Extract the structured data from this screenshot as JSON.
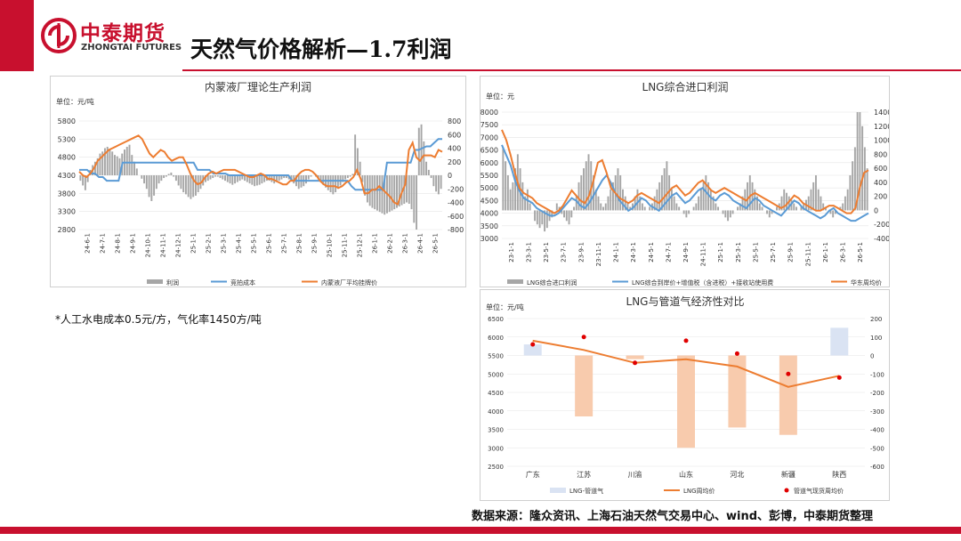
{
  "brand": {
    "cn": "中泰期货",
    "en": "ZHONGTAI FUTURES"
  },
  "page_title": "天然气价格解析—1.7利润",
  "note": "*人工水电成本0.5元/方，气化率1450方/吨",
  "source": "数据来源：隆众资讯、上海石油天然气交易中心、wind、彭博，中泰期货整理",
  "colors": {
    "brand_red": "#c8102e",
    "grey_bar": "#a6a6a6",
    "blue": "#5b9bd5",
    "orange": "#ed7d31",
    "pink_bar": "#f8cbad",
    "light_blue_bar": "#dae3f3",
    "dot_red": "#e00000"
  },
  "chart_data": [
    {
      "type": "line",
      "title": "内蒙液厂理论生产利润",
      "unit": "单位：元/吨",
      "left_axis": {
        "ticks": [
          "5800",
          "5300",
          "4800",
          "4300",
          "3800",
          "3300",
          "2800"
        ],
        "range": [
          2800,
          5800
        ]
      },
      "right_axis": {
        "ticks": [
          "800",
          "600",
          "400",
          "200",
          "0",
          "-200",
          "-400",
          "-600",
          "-800"
        ],
        "range": [
          -800,
          800
        ]
      },
      "x_ticks": [
        "24-6-1",
        "24-7-1",
        "24-8-1",
        "24-9-1",
        "24-10-1",
        "24-11-1",
        "24-12-1",
        "25-1-1",
        "25-2-1",
        "25-3-1",
        "25-4-1",
        "25-5-1",
        "25-6-1",
        "25-7-1",
        "25-8-1",
        "25-9-1",
        "25-10-1",
        "25-11-1",
        "25-12-1",
        "26-1-1",
        "26-2-1",
        "26-3-1",
        "26-4-1",
        "26-5-1"
      ],
      "legend": [
        "利润",
        "竞拍成本",
        "内蒙液厂平均挂牌价"
      ],
      "series": [
        {
          "name": "利润",
          "axis": "right",
          "kind": "bar",
          "values": [
            -80,
            -150,
            -220,
            -100,
            80,
            150,
            200,
            250,
            320,
            350,
            400,
            420,
            380,
            350,
            300,
            280,
            250,
            320,
            380,
            420,
            450,
            300,
            200,
            100,
            0,
            -50,
            -120,
            -200,
            -320,
            -380,
            -300,
            -200,
            -120,
            -80,
            -40,
            -20,
            20,
            40,
            -20,
            -80,
            -150,
            -200,
            -250,
            -280,
            -320,
            -350,
            -320,
            -300,
            -250,
            -200,
            -150,
            -100,
            -80,
            -60,
            -40,
            -20,
            -20,
            -40,
            -60,
            -80,
            -100,
            -120,
            -140,
            -120,
            -100,
            -80,
            -60,
            -80,
            -100,
            -120,
            -140,
            -160,
            -150,
            -140,
            -120,
            -100,
            -80,
            -80,
            -100,
            -120,
            -100,
            -80,
            -60,
            -40,
            -40,
            -60,
            -80,
            -120,
            -160,
            -200,
            -180,
            -160,
            -120,
            -60,
            -20,
            0,
            -20,
            -60,
            -100,
            -140,
            -180,
            -220,
            -250,
            -280,
            -250,
            -200,
            -150,
            -100,
            -60,
            -40,
            -20,
            20,
            600,
            400,
            200,
            -100,
            -300,
            -400,
            -450,
            -480,
            -500,
            -520,
            -540,
            -560,
            -580,
            -560,
            -540,
            -520,
            -500,
            -480,
            -460,
            -440,
            -420,
            -400,
            -420,
            -500,
            -700,
            -800,
            700,
            750,
            500,
            200,
            80,
            -40,
            -160,
            -240,
            -280,
            -200
          ]
        },
        {
          "name": "竞拍成本",
          "axis": "left",
          "kind": "line",
          "values": [
            4450,
            4450,
            4450,
            4350,
            4350,
            4250,
            4250,
            4150,
            4150,
            4150,
            4150,
            4650,
            4650,
            4650,
            4650,
            4650,
            4650,
            4650,
            4650,
            4650,
            4650,
            4650,
            4650,
            4650,
            4650,
            4650,
            4650,
            4650,
            4650,
            4650,
            4450,
            4450,
            4450,
            4450,
            4350,
            4350,
            4350,
            4350,
            4300,
            4300,
            4300,
            4300,
            4300,
            4300,
            4300,
            4300,
            4300,
            4300,
            4300,
            4300,
            4300,
            4300,
            4300,
            4300,
            4150,
            4150,
            4150,
            4150,
            4150,
            4150,
            4150,
            4150,
            4150,
            4150,
            4150,
            4150,
            4150,
            4150,
            4150,
            4000,
            3900,
            3900,
            3900,
            3900,
            3900,
            3900,
            3900,
            3900,
            4650,
            4650,
            4650,
            4650,
            4650,
            4650,
            4650,
            5000,
            5000,
            5050,
            5100,
            5100,
            5200,
            5300,
            5300
          ]
        },
        {
          "name": "内蒙液厂平均挂牌价",
          "axis": "left",
          "kind": "line",
          "values": [
            4400,
            4300,
            4250,
            4350,
            4500,
            4700,
            4800,
            4900,
            5000,
            5050,
            5100,
            5150,
            5200,
            5250,
            5300,
            5350,
            5400,
            5300,
            5100,
            4900,
            4800,
            4900,
            5000,
            4950,
            4800,
            4700,
            4750,
            4800,
            4800,
            4600,
            4350,
            4150,
            4050,
            4100,
            4250,
            4350,
            4400,
            4350,
            4400,
            4450,
            4450,
            4450,
            4450,
            4400,
            4350,
            4300,
            4250,
            4250,
            4300,
            4350,
            4300,
            4200,
            4200,
            4150,
            4100,
            4050,
            4050,
            4150,
            4150,
            4300,
            4400,
            4450,
            4450,
            4400,
            4300,
            4150,
            4050,
            4000,
            4000,
            4000,
            3950,
            4000,
            4100,
            4150,
            4250,
            4450,
            4200,
            3800,
            3800,
            3900,
            3900,
            4000,
            3900,
            3800,
            3700,
            3550,
            3500,
            3800,
            4050,
            5000,
            5200,
            4800,
            4700,
            4850,
            4850,
            4850,
            4800,
            5000,
            4950
          ]
        }
      ]
    },
    {
      "type": "line",
      "title": "LNG综合进口利润",
      "unit": "单位：元",
      "left_axis": {
        "ticks": [
          "8000",
          "7500",
          "7000",
          "6500",
          "6000",
          "5500",
          "5000",
          "4500",
          "4000",
          "3500",
          "3000"
        ],
        "range": [
          3000,
          8000
        ]
      },
      "right_axis": {
        "ticks": [
          "1400",
          "1200",
          "1000",
          "800",
          "600",
          "400",
          "200",
          "0",
          "-200",
          "-400"
        ],
        "range": [
          -400,
          1400
        ]
      },
      "x_ticks": [
        "23-1-1",
        "23-3-1",
        "23-5-1",
        "23-7-1",
        "23-9-1",
        "23-11-1",
        "24-1-1",
        "24-3-1",
        "24-5-1",
        "24-7-1",
        "24-9-1",
        "24-11-1",
        "25-1-1",
        "25-3-1",
        "25-5-1",
        "25-7-1",
        "25-9-1",
        "25-11-1",
        "26-1-1",
        "26-3-1",
        "26-5-1"
      ],
      "legend": [
        "LNG综合进口利润",
        "LNG综合到岸价+增值税（含进税）+接收站使用费",
        "华东周均价"
      ],
      "series": [
        {
          "name": "LNG综合进口利润",
          "axis": "right",
          "kind": "bar",
          "values": [
            900,
            700,
            500,
            300,
            400,
            600,
            800,
            600,
            400,
            200,
            300,
            100,
            0,
            -150,
            -200,
            -250,
            -200,
            -300,
            -250,
            -150,
            -100,
            0,
            100,
            50,
            -50,
            -100,
            -150,
            -200,
            -100,
            50,
            200,
            400,
            500,
            600,
            700,
            800,
            700,
            500,
            300,
            200,
            100,
            50,
            100,
            200,
            300,
            400,
            500,
            600,
            500,
            300,
            200,
            100,
            50,
            100,
            200,
            300,
            200,
            100,
            50,
            0,
            50,
            100,
            200,
            300,
            400,
            500,
            600,
            700,
            500,
            300,
            200,
            100,
            50,
            0,
            -50,
            -100,
            -50,
            0,
            50,
            100,
            200,
            300,
            400,
            500,
            400,
            300,
            200,
            100,
            50,
            0,
            -50,
            -100,
            -150,
            -100,
            -50,
            0,
            50,
            100,
            200,
            300,
            400,
            500,
            400,
            300,
            200,
            100,
            50,
            0,
            -50,
            -100,
            -50,
            0,
            50,
            100,
            200,
            300,
            250,
            200,
            150,
            100,
            50,
            0,
            50,
            100,
            150,
            200,
            300,
            400,
            500,
            300,
            200,
            100,
            50,
            0,
            -50,
            -100,
            -50,
            0,
            50,
            100,
            200,
            300,
            500,
            700,
            900,
            1400,
            1400,
            1200,
            900,
            600
          ]
        },
        {
          "name": "LNG综合到岸价+增值税（含进税）+接收站使用费",
          "axis": "left",
          "kind": "line",
          "values": [
            6700,
            6300,
            5900,
            5300,
            4900,
            4600,
            4500,
            4400,
            4200,
            4100,
            4000,
            3900,
            3900,
            4000,
            4200,
            4400,
            4600,
            4500,
            4300,
            4200,
            4400,
            4700,
            5000,
            5300,
            5500,
            5200,
            4800,
            4500,
            4300,
            4100,
            4200,
            4400,
            4600,
            4500,
            4300,
            4200,
            4100,
            4300,
            4500,
            4700,
            4800,
            4600,
            4400,
            4500,
            4700,
            4900,
            5000,
            4800,
            4600,
            4500,
            4700,
            4800,
            4700,
            4500,
            4400,
            4300,
            4200,
            4400,
            4600,
            4500,
            4300,
            4200,
            4100,
            4000,
            3900,
            4100,
            4300,
            4500,
            4400,
            4200,
            4100,
            4000,
            3900,
            3800,
            3900,
            4100,
            4200,
            4000,
            3900,
            3800,
            3700,
            3700,
            3800,
            3900,
            4000
          ]
        },
        {
          "name": "华东周均价",
          "axis": "left",
          "kind": "line",
          "values": [
            7300,
            6900,
            6300,
            5600,
            5000,
            4800,
            4700,
            4600,
            4400,
            4300,
            4200,
            4100,
            4000,
            4100,
            4300,
            4600,
            4900,
            4700,
            4500,
            4400,
            4700,
            5300,
            6000,
            6100,
            5600,
            5000,
            4800,
            4600,
            4500,
            4400,
            4500,
            4700,
            4800,
            4700,
            4600,
            4500,
            4400,
            4600,
            4800,
            5000,
            5100,
            4900,
            4700,
            4800,
            5000,
            5200,
            5300,
            5100,
            4900,
            4800,
            4900,
            5000,
            4900,
            4800,
            4700,
            4600,
            4500,
            4700,
            4800,
            4700,
            4600,
            4500,
            4400,
            4300,
            4200,
            4300,
            4500,
            4700,
            4600,
            4400,
            4300,
            4200,
            4100,
            4100,
            4200,
            4300,
            4300,
            4200,
            4100,
            4000,
            4000,
            4200,
            5000,
            5600,
            5700
          ]
        }
      ]
    },
    {
      "type": "bar",
      "title": "LNG与管道气经济性对比",
      "unit": "单位：元/吨",
      "left_axis": {
        "ticks": [
          "6500",
          "6000",
          "5500",
          "5000",
          "4500",
          "4000",
          "3500",
          "3000",
          "2500"
        ],
        "range": [
          2500,
          6500
        ]
      },
      "right_axis": {
        "ticks": [
          "200",
          "100",
          "0",
          "-100",
          "-200",
          "-300",
          "-400",
          "-500",
          "-600"
        ],
        "range": [
          -600,
          200
        ]
      },
      "categories": [
        "广东",
        "江苏",
        "川渝",
        "山东",
        "河北",
        "新疆",
        "陕西"
      ],
      "legend": [
        "LNG-管道气",
        "LNG周均价",
        "管道气现货周均价"
      ],
      "series": [
        {
          "name": "LNG-管道气",
          "axis": "right",
          "kind": "bar",
          "values": [
            60,
            -330,
            -20,
            -500,
            -390,
            -430,
            150
          ]
        },
        {
          "name": "LNG周均价",
          "axis": "left",
          "kind": "line",
          "values": [
            5900,
            5650,
            5300,
            5400,
            5200,
            4650,
            4950
          ]
        },
        {
          "name": "管道气现货周均价",
          "axis": "left",
          "kind": "scatter",
          "values": [
            5800,
            6000,
            5300,
            5900,
            5550,
            5000,
            4900
          ]
        }
      ]
    }
  ]
}
